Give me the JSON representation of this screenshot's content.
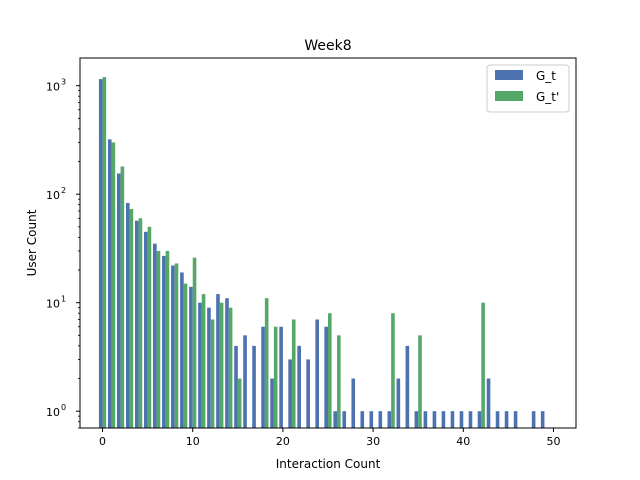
{
  "chart_data": {
    "type": "bar",
    "title": "Week8",
    "xlabel": "Interaction Count",
    "ylabel": "User Count",
    "yscale": "log",
    "xlim": [
      -2.5,
      52.5
    ],
    "ylim": [
      0.7,
      1800
    ],
    "xticks": [
      0,
      10,
      20,
      30,
      40,
      50
    ],
    "yticks": [
      {
        "value": 1,
        "base": "10",
        "exp": "0"
      },
      {
        "value": 10,
        "base": "10",
        "exp": "1"
      },
      {
        "value": 100,
        "base": "10",
        "exp": "2"
      },
      {
        "value": 1000,
        "base": "10",
        "exp": "3"
      }
    ],
    "legend_position": "top-right",
    "series": [
      {
        "name": "G_t",
        "color": "#4c72b0",
        "x": [
          0,
          1,
          2,
          3,
          4,
          5,
          6,
          7,
          8,
          9,
          10,
          11,
          12,
          13,
          14,
          15,
          16,
          17,
          18,
          19,
          20,
          21,
          22,
          23,
          24,
          25,
          26,
          27,
          28,
          29,
          30,
          31,
          32,
          33,
          34,
          35,
          36,
          37,
          38,
          39,
          40,
          41,
          42,
          43,
          44,
          45,
          46,
          48,
          49
        ],
        "values": [
          1150,
          320,
          155,
          83,
          57,
          45,
          35,
          27,
          22,
          19,
          14,
          10,
          9,
          12,
          11,
          4,
          5,
          4,
          6,
          2,
          6,
          3,
          4,
          3,
          7,
          6,
          1,
          1,
          2,
          1,
          1,
          1,
          1,
          2,
          4,
          1,
          1,
          1,
          1,
          1,
          1,
          1,
          1,
          2,
          1,
          1,
          1,
          1,
          1
        ]
      },
      {
        "name": "G_t'",
        "color": "#55a868",
        "x": [
          0,
          1,
          2,
          3,
          4,
          5,
          6,
          7,
          8,
          9,
          10,
          11,
          12,
          13,
          14,
          15,
          18,
          19,
          21,
          25,
          26,
          32,
          35,
          42
        ],
        "values": [
          1200,
          300,
          180,
          73,
          60,
          50,
          30,
          30,
          23,
          15,
          26,
          12,
          7,
          10,
          9,
          2,
          11,
          6,
          7,
          8,
          5,
          8,
          5,
          10
        ]
      }
    ]
  }
}
